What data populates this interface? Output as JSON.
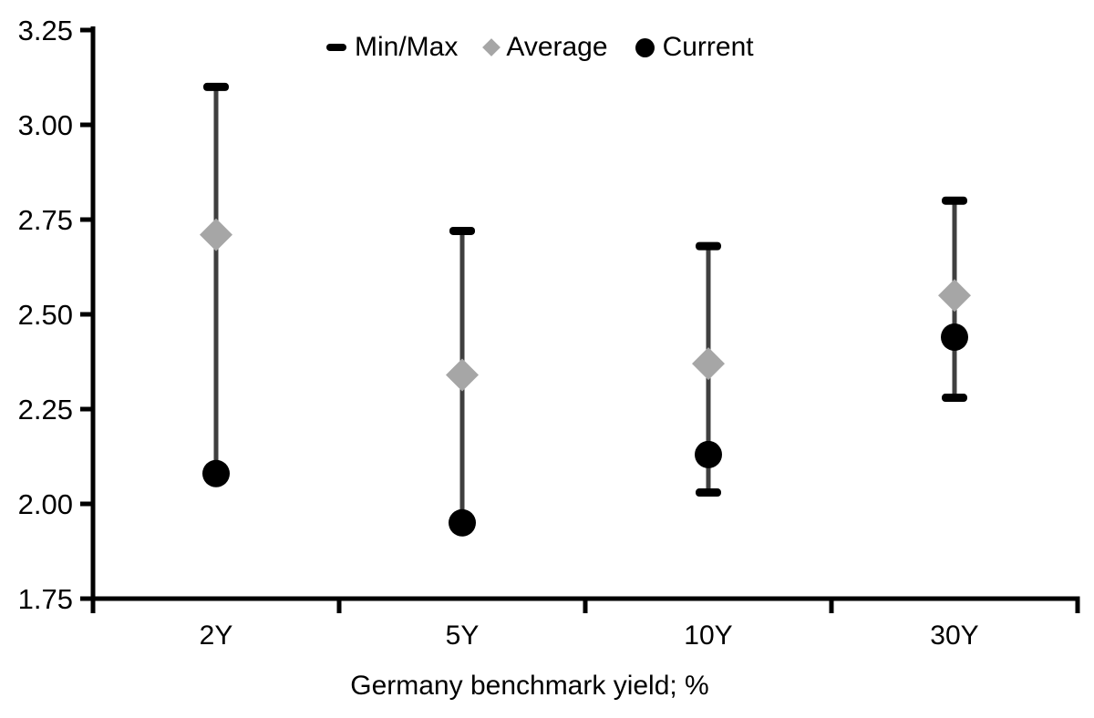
{
  "chart_data": {
    "type": "scatter",
    "subtype": "min-max-range-with-average-and-current",
    "title": "",
    "xlabel": "Germany benchmark yield; %",
    "ylabel": "",
    "categories": [
      "2Y",
      "5Y",
      "10Y",
      "30Y"
    ],
    "ylim": [
      1.75,
      3.25
    ],
    "yticks": [
      1.75,
      2.0,
      2.25,
      2.5,
      2.75,
      3.0,
      3.25
    ],
    "ytick_labels": [
      "1.75",
      "2.00",
      "2.25",
      "2.50",
      "2.75",
      "3.00",
      "3.25"
    ],
    "grid": "off",
    "legend_position": "top-center",
    "series": [
      {
        "name": "Min/Max",
        "marker": "dash",
        "min": [
          2.08,
          1.95,
          2.03,
          2.28
        ],
        "max": [
          3.1,
          2.72,
          2.68,
          2.8
        ],
        "min_cap_visible": [
          false,
          false,
          true,
          true
        ]
      },
      {
        "name": "Average",
        "marker": "diamond",
        "values": [
          2.71,
          2.34,
          2.37,
          2.55
        ]
      },
      {
        "name": "Current",
        "marker": "circle",
        "values": [
          2.08,
          1.95,
          2.13,
          2.44
        ]
      }
    ],
    "colors": {
      "axis": "#000000",
      "range_line": "#3f3f3f",
      "cap": "#000000",
      "average": "#a6a6a6",
      "current": "#000000",
      "text": "#000000"
    }
  }
}
